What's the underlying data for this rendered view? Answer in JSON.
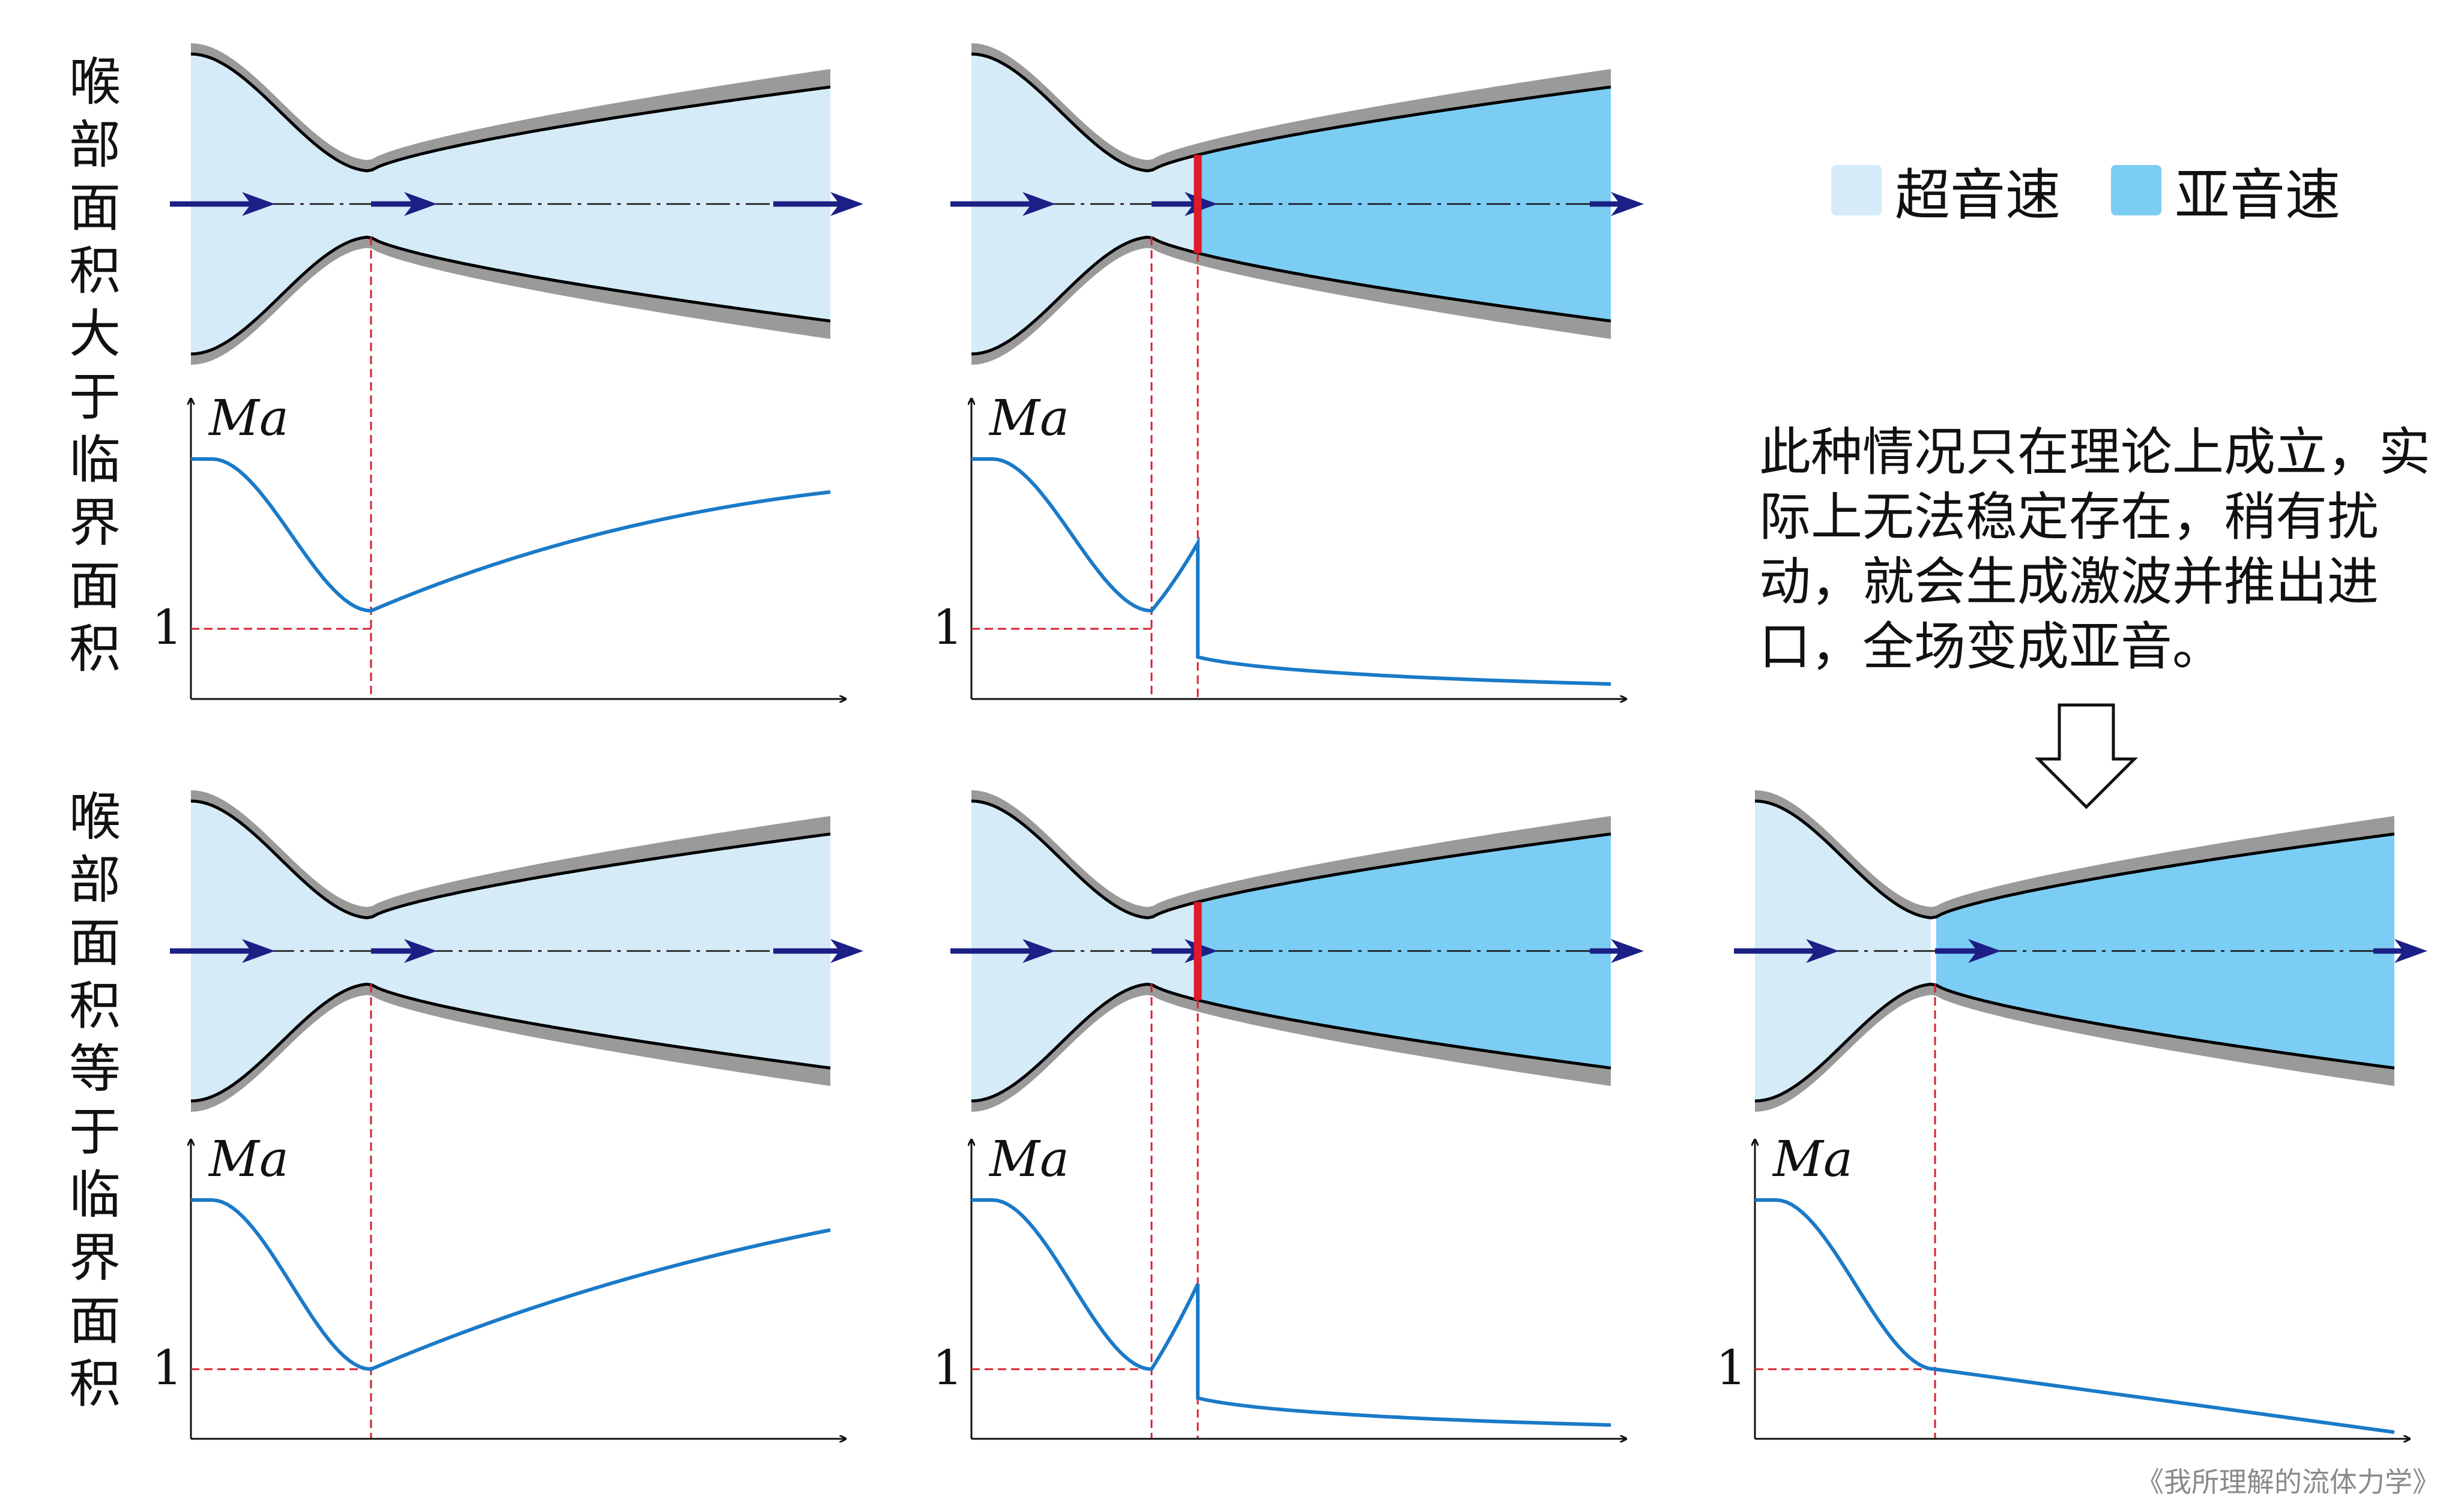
{
  "row_labels": {
    "top": "喉部面积大于临界面积",
    "bottom": "喉部面积等于临界面积"
  },
  "legend": {
    "supersonic": "超音速",
    "subsonic": "亚音速",
    "supersonic_color": "#d5ebf8",
    "subsonic_color": "#7ccdf3"
  },
  "note": "此种情况只在理论上成立，实际上无法稳定存在，稍有扰动，就会生成激波并推出进口，全场变成亚音。",
  "axis": {
    "y_label": "Ma",
    "reference_value": "1"
  },
  "colors": {
    "wall": "#9a9a9a",
    "wall_edge": "#000000",
    "shock": "#e0192b",
    "curve": "#1a7ac8",
    "arrow": "#1c1f86",
    "guide": "#d6202e"
  },
  "watermark": "《我所理解的流体力学》"
}
